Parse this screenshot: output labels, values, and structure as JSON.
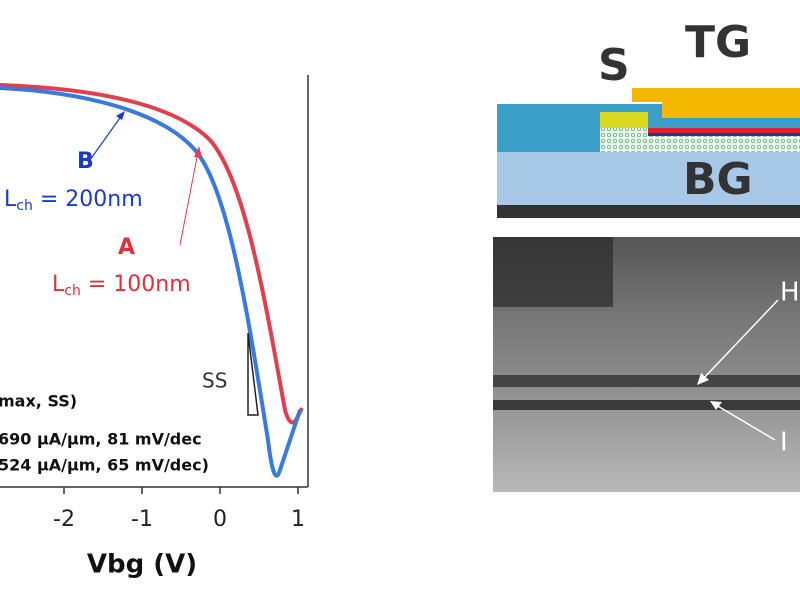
{
  "plot": {
    "annotations": {
      "b_label": "B",
      "b_lch": "L",
      "b_lch_sub": "ch",
      "b_lch_value": " = 200nm",
      "a_label": "A",
      "a_lch": "L",
      "a_lch_sub": "ch",
      "a_lch_value": " = 100nm",
      "ss": "SS",
      "legend_head": "max, SS)",
      "legend_a": "690 µA/µm, 81 mV/dec",
      "legend_b": "524 µA/µm, 65 mV/dec)"
    },
    "x_ticks": [
      -2,
      -1,
      0,
      1
    ],
    "x_label": "Vbg (V)"
  },
  "device": {
    "source": "S",
    "top_gate": "TG",
    "back_gate": "BG"
  },
  "tem": {
    "upper_label": "H",
    "lower_label": "I"
  }
}
